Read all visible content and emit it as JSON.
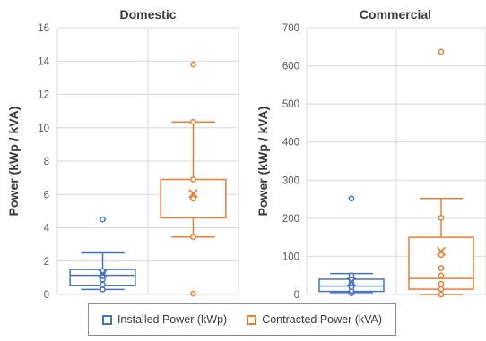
{
  "chart_data": [
    {
      "type": "boxplot",
      "title": "Domestic",
      "ylabel": "Power (kWp / kVA)",
      "ylim": [
        0,
        16
      ],
      "yticks": [
        "0",
        "2",
        "4",
        "6",
        "8",
        "10",
        "12",
        "14",
        "16"
      ],
      "series": [
        {
          "name": "Installed  Power (kWp)",
          "color": "#4472c4",
          "whisker_low": 0.3,
          "q1": 0.55,
          "median": 1.15,
          "q3": 1.5,
          "whisker_high": 2.5,
          "mean": 1.25,
          "points": [
            0.3,
            0.6,
            0.9,
            1.1,
            1.3,
            1.4,
            4.5
          ]
        },
        {
          "name": "Contracted Power (kVA)",
          "color": "#ed7d31",
          "whisker_low": 3.45,
          "q1": 4.6,
          "median": 4.6,
          "q3": 6.9,
          "whisker_high": 10.35,
          "mean": 6.05,
          "points": [
            0.05,
            3.45,
            5.75,
            6.9,
            10.35,
            13.8
          ]
        }
      ]
    },
    {
      "type": "boxplot",
      "title": "Commercial",
      "ylabel": "Power (kWp / kVA)",
      "ylim": [
        0,
        700
      ],
      "yticks": [
        "0",
        "100",
        "200",
        "300",
        "400",
        "500",
        "600",
        "700"
      ],
      "series": [
        {
          "name": "Installed  Power (kWp)",
          "color": "#4472c4",
          "whisker_low": 5,
          "q1": 8,
          "median": 22,
          "q3": 40,
          "whisker_high": 55,
          "mean": 33,
          "points": [
            3,
            10,
            20,
            30,
            40,
            50,
            252
          ]
        },
        {
          "name": "Contracted Power (kVA)",
          "color": "#ed7d31",
          "whisker_low": 0,
          "q1": 14,
          "median": 42,
          "q3": 150,
          "whisker_high": 252,
          "mean": 113,
          "points": [
            0,
            14,
            28,
            50,
            69,
            104,
            201,
            637
          ]
        }
      ]
    }
  ],
  "legend": {
    "items": [
      {
        "label": "Installed  Power (kWp)",
        "color": "#4472c4"
      },
      {
        "label": "Contracted Power (kVA)",
        "color": "#ed7d31"
      }
    ]
  }
}
